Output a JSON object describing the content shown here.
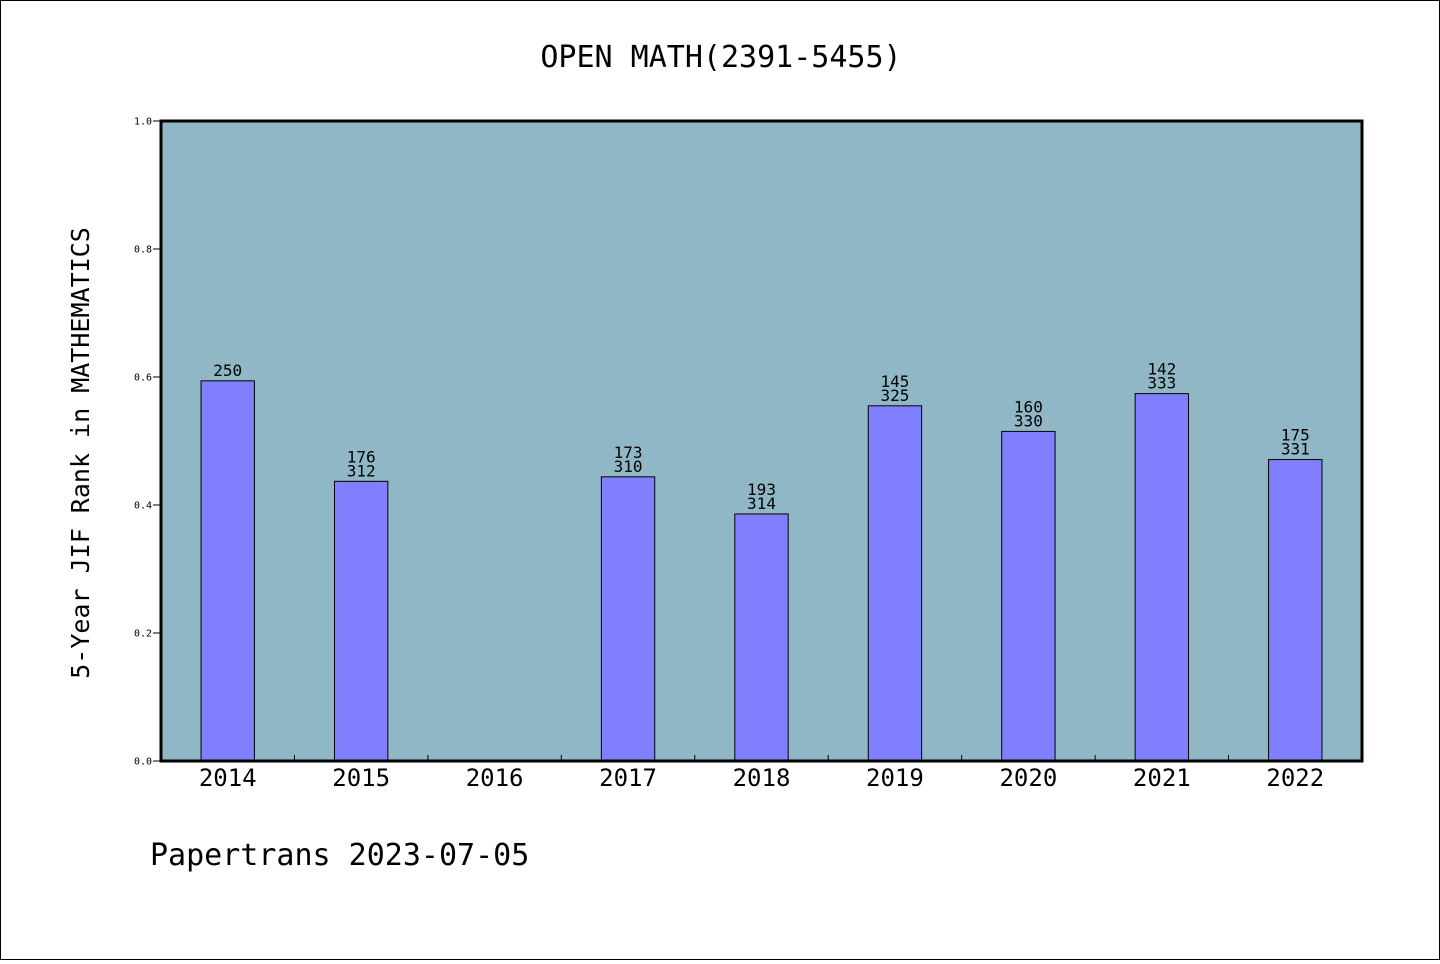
{
  "chart_data": {
    "type": "bar",
    "title": "OPEN MATH(2391-5455)",
    "xlabel": "",
    "ylabel": "5-Year JIF Rank in MATHEMATICS",
    "ylim": [
      0,
      1.0
    ],
    "yticks": [
      "0.0",
      "0.2",
      "0.4",
      "0.6",
      "0.8",
      "1.0"
    ],
    "grid": false,
    "categories": [
      "2014",
      "2015",
      "2016",
      "2017",
      "2018",
      "2019",
      "2020",
      "2021",
      "2022"
    ],
    "values": [
      0.594,
      0.437,
      null,
      0.444,
      0.386,
      0.555,
      0.515,
      0.574,
      0.471
    ],
    "data_labels": [
      [
        "250"
      ],
      [
        "176",
        "312"
      ],
      [],
      [
        "173",
        "310"
      ],
      [
        "193",
        "314"
      ],
      [
        "145",
        "325"
      ],
      [
        "160",
        "330"
      ],
      [
        "142",
        "333"
      ],
      [
        "175",
        "331"
      ]
    ],
    "colors": {
      "plot_background": "#8fb7c5",
      "bar_fill": "#8080ff",
      "bar_stroke": "#000000"
    }
  },
  "footer": {
    "text": "Papertrans 2023-07-05"
  }
}
